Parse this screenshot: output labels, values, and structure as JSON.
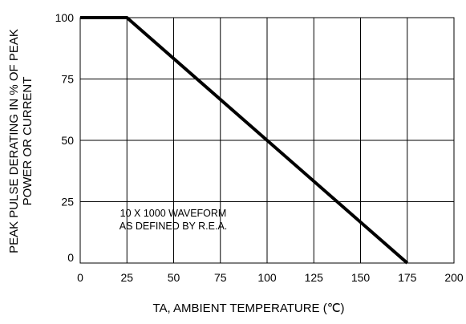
{
  "chart_data": {
    "type": "line",
    "title": "",
    "xlabel": "TA, AMBIENT TEMPERATURE (℃)",
    "ylabel_lines": [
      "PEAK PULSE DERATING IN % OF PEAK",
      "POWER OR CURRENT"
    ],
    "xlim": [
      0,
      200
    ],
    "ylim": [
      0,
      100
    ],
    "x_ticks": [
      0,
      25,
      50,
      75,
      100,
      125,
      150,
      175,
      200
    ],
    "y_ticks": [
      0,
      25,
      50,
      75,
      100
    ],
    "grid": true,
    "legend": "none",
    "annotation_lines": [
      "10 X 1000 WAVEFORM",
      "AS DEFINED BY R.E.A."
    ],
    "series": [
      {
        "x": [
          0,
          25,
          175
        ],
        "y": [
          100,
          100,
          0
        ]
      }
    ]
  }
}
